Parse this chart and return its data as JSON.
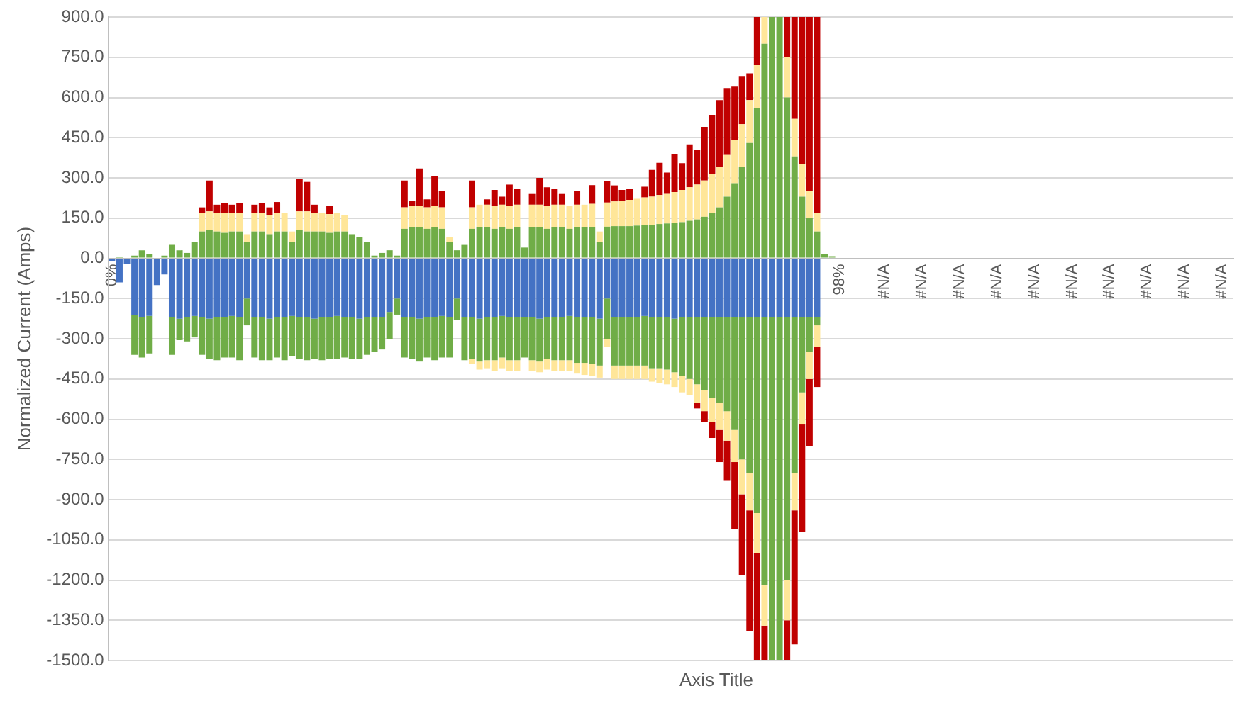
{
  "chart_data": {
    "type": "bar",
    "stacked": true,
    "xlabel": "Axis Title",
    "ylabel": "Normalized Current (Amps)",
    "grid": "y",
    "ylim": [
      -1500,
      900
    ],
    "yticks": [
      {
        "value": 900,
        "label": "900.0"
      },
      {
        "value": 750,
        "label": "750.0"
      },
      {
        "value": 600,
        "label": "600.0"
      },
      {
        "value": 450,
        "label": "450.0"
      },
      {
        "value": 300,
        "label": "300.0"
      },
      {
        "value": 150,
        "label": "150.0"
      },
      {
        "value": 0,
        "label": "0.0"
      },
      {
        "value": -150,
        "label": "-150.0"
      },
      {
        "value": -300,
        "label": "-300.0"
      },
      {
        "value": -450,
        "label": "-450.0"
      },
      {
        "value": -600,
        "label": "-600.0"
      },
      {
        "value": -750,
        "label": "-750.0"
      },
      {
        "value": -900,
        "label": "-900.0"
      },
      {
        "value": -1050,
        "label": "-1050.0"
      },
      {
        "value": -1200,
        "label": "-1200.0"
      },
      {
        "value": -1350,
        "label": "-1350.0"
      },
      {
        "value": -1500,
        "label": "-1500.0"
      }
    ],
    "categories": [
      "0%",
      null,
      null,
      null,
      null,
      null,
      null,
      null,
      null,
      null,
      null,
      null,
      null,
      null,
      null,
      null,
      null,
      null,
      null,
      null,
      null,
      null,
      null,
      null,
      null,
      null,
      null,
      null,
      null,
      null,
      null,
      null,
      null,
      null,
      null,
      null,
      null,
      null,
      null,
      null,
      null,
      null,
      null,
      null,
      null,
      null,
      null,
      null,
      null,
      null,
      null,
      null,
      null,
      null,
      null,
      null,
      null,
      null,
      null,
      null,
      null,
      null,
      null,
      null,
      null,
      null,
      null,
      null,
      null,
      null,
      null,
      null,
      null,
      null,
      null,
      null,
      null,
      null,
      null,
      null,
      null,
      null,
      null,
      null,
      null,
      null,
      null,
      null,
      null,
      null,
      null,
      null,
      null,
      null,
      null,
      null,
      null,
      "98%",
      null,
      null,
      null,
      null,
      null,
      "#N/A",
      null,
      null,
      null,
      null,
      "#N/A",
      null,
      null,
      null,
      null,
      "#N/A",
      null,
      null,
      null,
      null,
      "#N/A",
      null,
      null,
      null,
      null,
      "#N/A",
      null,
      null,
      null,
      null,
      "#N/A",
      null,
      null,
      null,
      null,
      "#N/A",
      null,
      null,
      null,
      null,
      "#N/A",
      null,
      null,
      null,
      null,
      "#N/A",
      null,
      null,
      null,
      null,
      "#N/A",
      null
    ],
    "series": [
      {
        "color": "#70ad47",
        "values": [
          0,
          5,
          0,
          10,
          30,
          15,
          0,
          10,
          50,
          30,
          20,
          60,
          100,
          105,
          100,
          95,
          100,
          100,
          60,
          100,
          100,
          90,
          100,
          100,
          60,
          105,
          100,
          100,
          100,
          95,
          100,
          100,
          90,
          80,
          60,
          10,
          20,
          30,
          10,
          110,
          115,
          115,
          110,
          115,
          110,
          60,
          30,
          50,
          110,
          115,
          115,
          110,
          115,
          110,
          115,
          40,
          115,
          115,
          110,
          115,
          115,
          110,
          115,
          115,
          115,
          60,
          118,
          120,
          120,
          120,
          122,
          125,
          125,
          128,
          130,
          132,
          135,
          140,
          145,
          155,
          170,
          190,
          230,
          280,
          340,
          430,
          560,
          800,
          900,
          900,
          600,
          380,
          230,
          150,
          100,
          15,
          8,
          null,
          null,
          null,
          null,
          null,
          null,
          null,
          null,
          null,
          null,
          null,
          null,
          null,
          null,
          null,
          null,
          null,
          null,
          null,
          null,
          null,
          null,
          null,
          null,
          null,
          null,
          null,
          null,
          null,
          null,
          null,
          null,
          null,
          null,
          null,
          null,
          null,
          null,
          null,
          null,
          null,
          null,
          null,
          null,
          null,
          null,
          null,
          null,
          null,
          null,
          null,
          null,
          null
        ]
      },
      {
        "color": "#ffe699",
        "values": [
          0,
          0,
          0,
          0,
          0,
          0,
          0,
          0,
          0,
          0,
          0,
          0,
          70,
          70,
          70,
          75,
          70,
          70,
          30,
          70,
          70,
          70,
          70,
          70,
          40,
          70,
          75,
          70,
          70,
          70,
          70,
          60,
          0,
          0,
          0,
          0,
          0,
          0,
          0,
          80,
          80,
          80,
          80,
          80,
          80,
          20,
          0,
          0,
          80,
          85,
          85,
          85,
          85,
          85,
          85,
          0,
          85,
          85,
          85,
          85,
          85,
          85,
          85,
          85,
          88,
          40,
          90,
          92,
          95,
          98,
          100,
          102,
          105,
          108,
          110,
          115,
          120,
          125,
          130,
          135,
          145,
          150,
          155,
          160,
          160,
          160,
          160,
          100,
          0,
          0,
          150,
          140,
          120,
          100,
          70,
          0,
          0,
          0,
          null,
          null,
          null,
          null,
          null,
          null,
          null,
          null,
          null,
          null,
          null,
          null,
          null,
          null,
          null,
          null,
          null,
          null,
          null,
          null,
          null,
          null,
          null,
          null,
          null,
          null,
          null,
          null,
          null,
          null,
          null,
          null,
          null,
          null,
          null,
          null,
          null,
          null,
          null,
          null,
          null,
          null,
          null,
          null,
          null,
          null,
          null,
          null,
          null,
          null,
          null,
          null
        ]
      },
      {
        "color": "#c00000",
        "values": [
          0,
          0,
          0,
          0,
          0,
          0,
          0,
          0,
          0,
          0,
          0,
          0,
          20,
          115,
          30,
          35,
          30,
          35,
          0,
          30,
          35,
          30,
          40,
          0,
          0,
          120,
          110,
          30,
          0,
          30,
          0,
          0,
          0,
          0,
          0,
          0,
          0,
          0,
          0,
          100,
          20,
          140,
          30,
          110,
          60,
          0,
          0,
          0,
          100,
          0,
          20,
          60,
          30,
          80,
          60,
          0,
          40,
          100,
          70,
          60,
          40,
          0,
          50,
          0,
          70,
          0,
          80,
          60,
          40,
          40,
          0,
          40,
          100,
          120,
          80,
          140,
          100,
          160,
          130,
          200,
          220,
          250,
          250,
          200,
          180,
          100,
          180,
          0,
          0,
          0,
          150,
          380,
          550,
          650,
          730,
          0,
          0,
          0,
          null,
          null,
          null,
          null,
          null,
          null,
          null,
          null,
          null,
          null,
          null,
          null,
          null,
          null,
          null,
          null,
          null,
          null,
          null,
          null,
          null,
          null,
          null,
          null,
          null,
          null,
          null,
          null,
          null,
          null,
          null,
          null,
          null,
          null,
          null,
          null,
          null,
          null,
          null,
          null,
          null,
          null,
          null,
          null,
          null,
          null,
          null,
          null,
          null,
          null,
          null,
          null
        ]
      },
      {
        "color": "#4472c4",
        "values": [
          -10,
          -90,
          -20,
          -210,
          -220,
          -215,
          -100,
          -60,
          -220,
          -225,
          -220,
          -215,
          -220,
          -225,
          -220,
          -220,
          -215,
          -220,
          -150,
          -220,
          -220,
          -225,
          -220,
          -220,
          -215,
          -220,
          -220,
          -225,
          -220,
          -220,
          -215,
          -220,
          -220,
          -225,
          -220,
          -220,
          -220,
          -200,
          -150,
          -220,
          -220,
          -225,
          -220,
          -220,
          -215,
          -220,
          -150,
          -220,
          -220,
          -225,
          -220,
          -220,
          -215,
          -220,
          -220,
          -220,
          -220,
          -225,
          -220,
          -220,
          -220,
          -215,
          -220,
          -220,
          -220,
          -225,
          -150,
          -220,
          -220,
          -220,
          -220,
          -215,
          -220,
          -220,
          -220,
          -225,
          -220,
          -220,
          -220,
          -220,
          -220,
          -220,
          -220,
          -220,
          -220,
          -220,
          -220,
          -220,
          -220,
          -220,
          -220,
          -220,
          -220,
          -220,
          -220,
          0,
          0,
          0,
          null,
          null,
          null,
          null,
          null,
          null,
          null,
          null,
          null,
          null,
          null,
          null,
          null,
          null,
          null,
          null,
          null,
          null,
          null,
          null,
          null,
          null,
          null,
          null,
          null,
          null,
          null,
          null,
          null,
          null,
          null,
          null,
          null,
          null,
          null,
          null,
          null,
          null,
          null,
          null,
          null,
          null,
          null,
          null,
          null,
          null,
          null,
          null,
          null,
          null,
          null,
          null
        ]
      },
      {
        "color": "#70ad47",
        "values": [
          0,
          0,
          0,
          -150,
          -150,
          -140,
          0,
          0,
          -140,
          -80,
          -90,
          -80,
          -140,
          -150,
          -160,
          -150,
          -155,
          -160,
          -100,
          -150,
          -160,
          -155,
          -150,
          -160,
          -150,
          -155,
          -160,
          -150,
          -160,
          -155,
          -160,
          -150,
          -155,
          -150,
          -140,
          -130,
          -120,
          -100,
          -60,
          -150,
          -155,
          -160,
          -150,
          -160,
          -155,
          -150,
          -80,
          -160,
          -155,
          -160,
          -160,
          -160,
          -155,
          -160,
          -160,
          -150,
          -160,
          -160,
          -155,
          -160,
          -160,
          -165,
          -170,
          -170,
          -175,
          -175,
          -150,
          -180,
          -180,
          -180,
          -180,
          -185,
          -190,
          -190,
          -195,
          -200,
          -220,
          -230,
          -250,
          -270,
          -300,
          -320,
          -350,
          -420,
          -530,
          -580,
          -730,
          -1000,
          -1280,
          -1280,
          -980,
          -580,
          -280,
          -130,
          -30,
          0,
          0,
          0,
          null,
          null,
          null,
          null,
          null,
          null,
          null,
          null,
          null,
          null,
          null,
          null,
          null,
          null,
          null,
          null,
          null,
          null,
          null,
          null,
          null,
          null,
          null,
          null,
          null,
          null,
          null,
          null,
          null,
          null,
          null,
          null,
          null,
          null,
          null,
          null,
          null,
          null,
          null,
          null,
          null,
          null,
          null,
          null,
          null,
          null,
          null,
          null,
          null,
          null,
          null,
          null
        ]
      },
      {
        "color": "#ffe699",
        "values": [
          0,
          0,
          0,
          0,
          0,
          0,
          0,
          0,
          0,
          0,
          0,
          0,
          0,
          0,
          0,
          0,
          0,
          0,
          0,
          0,
          0,
          0,
          0,
          0,
          0,
          0,
          0,
          0,
          0,
          0,
          0,
          0,
          0,
          0,
          0,
          0,
          0,
          0,
          0,
          0,
          0,
          0,
          0,
          0,
          0,
          0,
          0,
          0,
          -20,
          -30,
          -30,
          -40,
          -40,
          -40,
          -40,
          0,
          -40,
          -40,
          -40,
          -40,
          -40,
          -40,
          -40,
          -45,
          -45,
          -45,
          -30,
          -50,
          -50,
          -50,
          -50,
          -50,
          -50,
          -55,
          -55,
          -55,
          -60,
          -60,
          -70,
          -80,
          -90,
          -100,
          -110,
          -120,
          -130,
          -140,
          -150,
          -150,
          0,
          0,
          -150,
          -140,
          -120,
          -100,
          -80,
          0,
          0,
          0,
          null,
          null,
          null,
          null,
          null,
          null,
          null,
          null,
          null,
          null,
          null,
          null,
          null,
          null,
          null,
          null,
          null,
          null,
          null,
          null,
          null,
          null,
          null,
          null,
          null,
          null,
          null,
          null,
          null,
          null,
          null,
          null,
          null,
          null,
          null,
          null,
          null,
          null,
          null,
          null,
          null,
          null,
          null,
          null,
          null,
          null,
          null,
          null,
          null,
          null,
          null,
          null
        ]
      },
      {
        "color": "#c00000",
        "values": [
          0,
          0,
          0,
          0,
          0,
          0,
          0,
          0,
          0,
          0,
          0,
          0,
          0,
          0,
          0,
          0,
          0,
          0,
          0,
          0,
          0,
          0,
          0,
          0,
          0,
          0,
          0,
          0,
          0,
          0,
          0,
          0,
          0,
          0,
          0,
          0,
          0,
          0,
          0,
          0,
          0,
          0,
          0,
          0,
          0,
          0,
          0,
          0,
          0,
          0,
          0,
          0,
          0,
          0,
          0,
          0,
          0,
          0,
          0,
          0,
          0,
          0,
          0,
          0,
          0,
          0,
          0,
          0,
          0,
          0,
          0,
          0,
          0,
          0,
          0,
          0,
          0,
          0,
          -20,
          -40,
          -60,
          -120,
          -150,
          -250,
          -300,
          -450,
          -400,
          -130,
          0,
          0,
          -150,
          -500,
          -400,
          -250,
          -150,
          0,
          0,
          0,
          null,
          null,
          null,
          null,
          null,
          null,
          null,
          null,
          null,
          null,
          null,
          null,
          null,
          null,
          null,
          null,
          null,
          null,
          null,
          null,
          null,
          null,
          null,
          null,
          null,
          null,
          null,
          null,
          null,
          null,
          null,
          null,
          null,
          null,
          null,
          null,
          null,
          null,
          null,
          null,
          null,
          null,
          null,
          null,
          null,
          null,
          null,
          null,
          null,
          null,
          null,
          null
        ]
      }
    ]
  }
}
